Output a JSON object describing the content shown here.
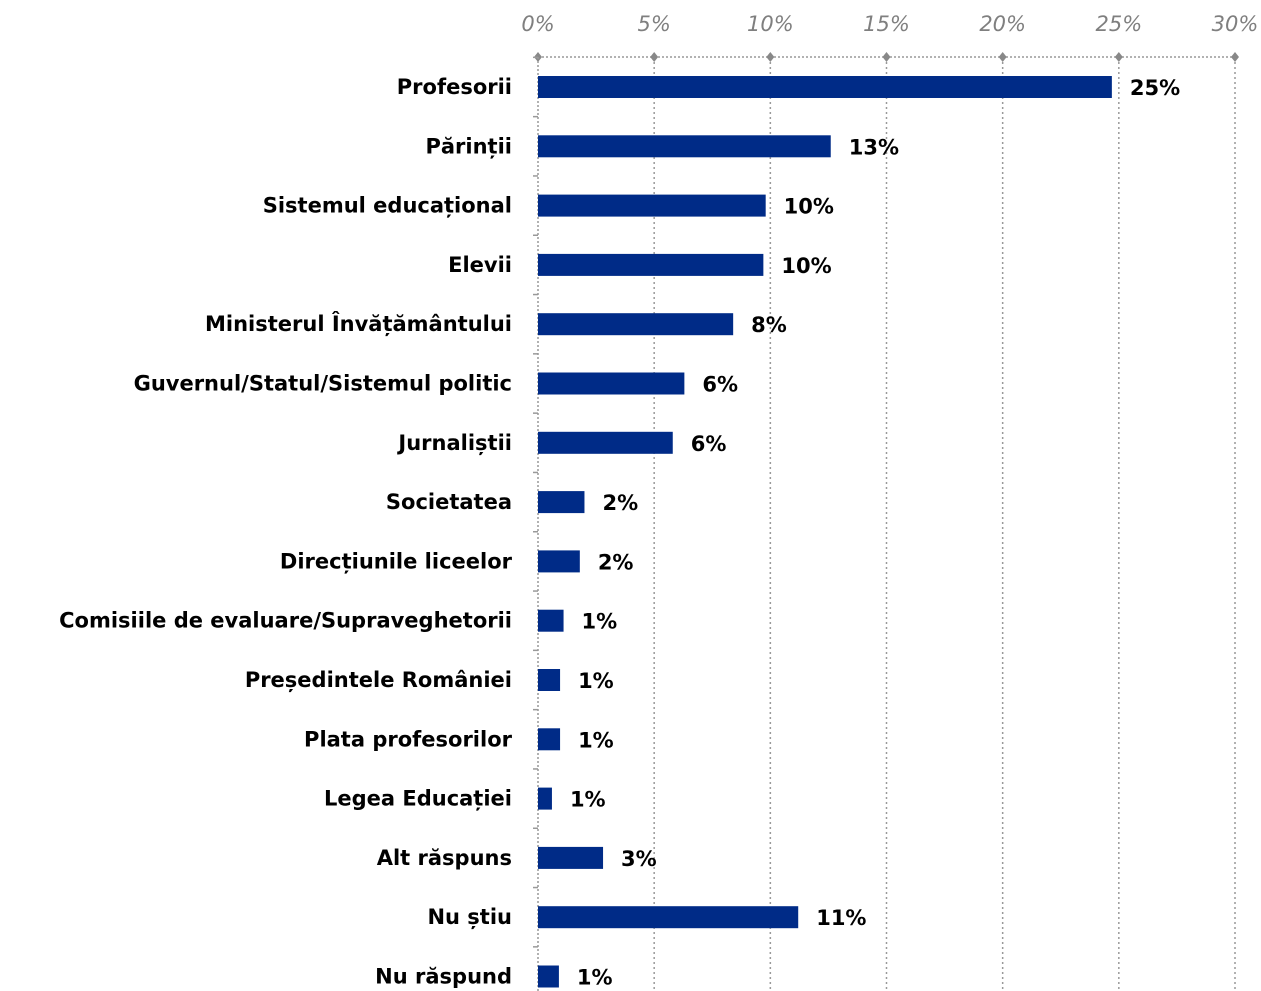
{
  "chart_data": {
    "type": "bar",
    "orientation": "horizontal",
    "categories": [
      "Profesorii",
      "Părinții",
      "Sistemul educațional",
      "Elevii",
      "Ministerul Învățământului",
      "Guvernul/Statul/Sistemul politic",
      "Jurnaliștii",
      "Societatea",
      "Direcțiunile liceelor",
      "Comisiile de evaluare/Supraveghetorii",
      "Președintele României",
      "Plata profesorilor",
      "Legea Educației",
      "Alt răspuns",
      "Nu știu",
      "Nu răspund"
    ],
    "values": [
      24.7,
      12.6,
      9.8,
      9.7,
      8.4,
      6.3,
      5.8,
      2.0,
      1.8,
      1.1,
      0.95,
      0.95,
      0.6,
      2.8,
      11.2,
      0.9
    ],
    "value_labels": [
      "25%",
      "13%",
      "10%",
      "10%",
      "8%",
      "6%",
      "6%",
      "2%",
      "2%",
      "1%",
      "1%",
      "1%",
      "1%",
      "3%",
      "11%",
      "1%"
    ],
    "color": "#002b87",
    "xlim": [
      0,
      30
    ],
    "xticks": [
      {
        "value": 0,
        "label": "0%"
      },
      {
        "value": 5,
        "label": "5%"
      },
      {
        "value": 10,
        "label": "10%"
      },
      {
        "value": 15,
        "label": "15%"
      },
      {
        "value": 20,
        "label": "20%"
      },
      {
        "value": 25,
        "label": "25%"
      },
      {
        "value": 30,
        "label": "30%"
      }
    ],
    "grid": true
  }
}
